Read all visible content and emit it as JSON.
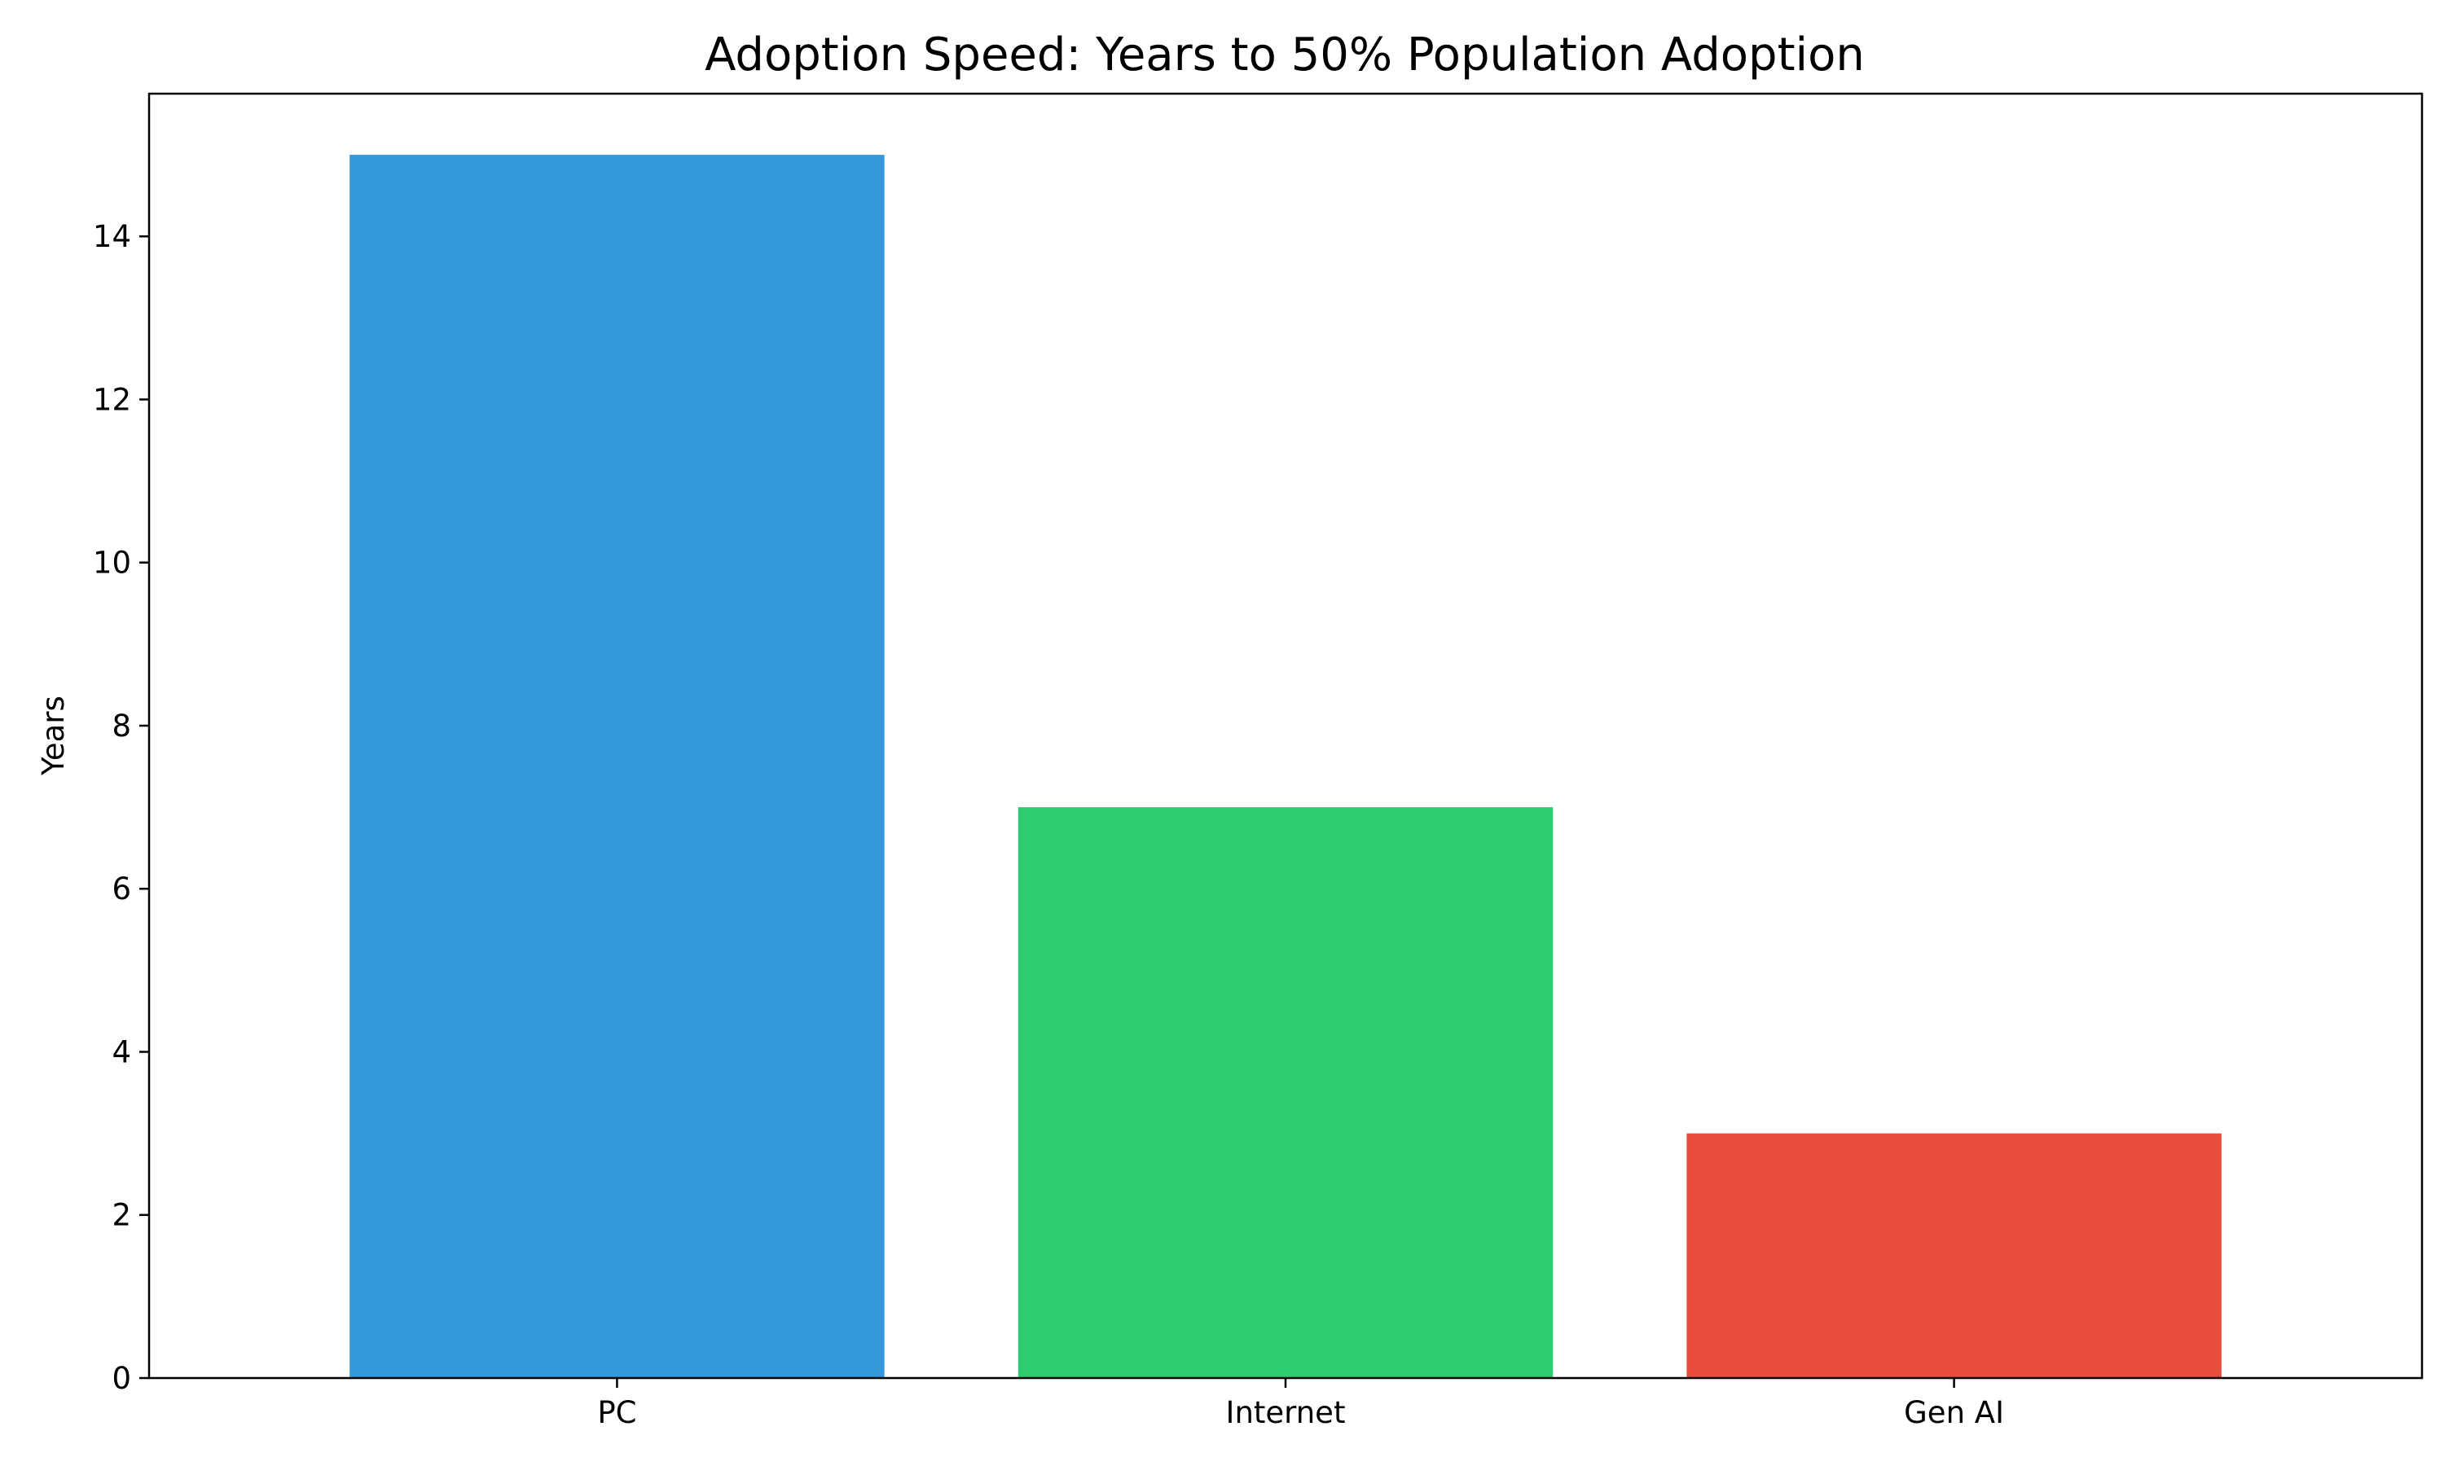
{
  "chart_data": {
    "type": "bar",
    "title": "Adoption Speed: Years to 50% Population Adoption",
    "xlabel": "",
    "ylabel": "Years",
    "categories": [
      "PC",
      "Internet",
      "Gen AI"
    ],
    "values": [
      15,
      7,
      3
    ],
    "colors": [
      "#3498db",
      "#2ecc71",
      "#e74c3c"
    ],
    "ylim": [
      0,
      15.75
    ],
    "yticks": [
      0,
      2,
      4,
      6,
      8,
      10,
      12,
      14
    ],
    "grid": false,
    "legend": "none"
  }
}
